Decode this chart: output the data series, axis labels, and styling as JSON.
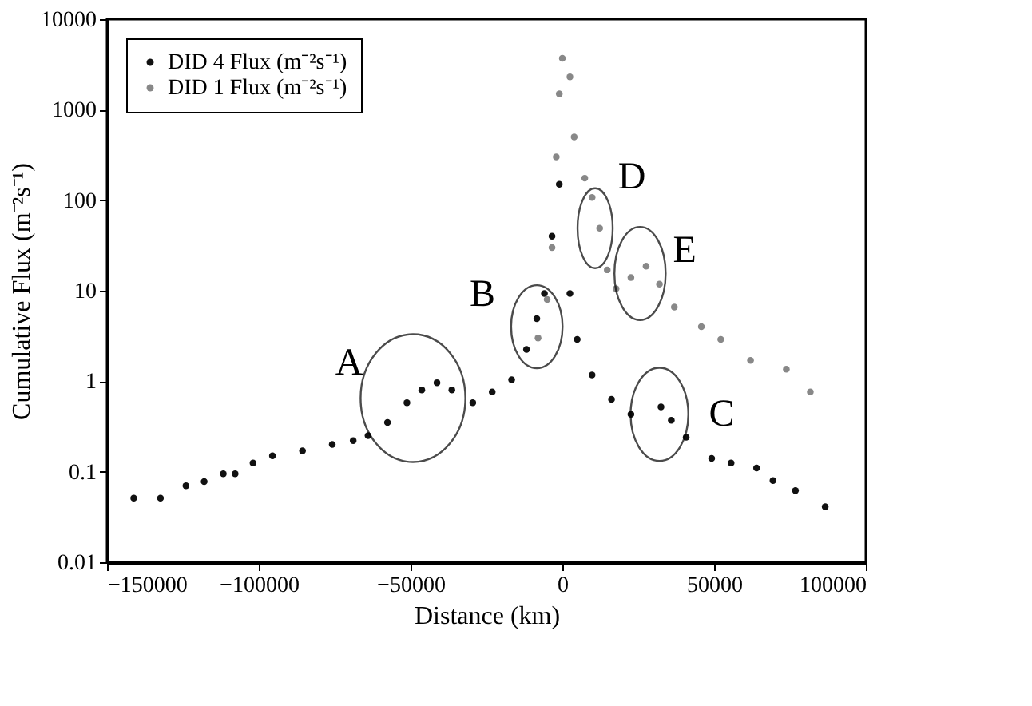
{
  "chart_data": {
    "type": "scatter",
    "xlabel": "Distance (km)",
    "ylabel": "Cumulative Flux (m⁻²s⁻¹)",
    "xlim": [
      -150000,
      100000
    ],
    "xticks": [
      -150000,
      -100000,
      -50000,
      0,
      50000,
      100000
    ],
    "ylim": [
      0.01,
      10000
    ],
    "yticks": [
      0.01,
      0.1,
      1,
      10,
      100,
      1000,
      10000
    ],
    "log": true,
    "grid": false,
    "legend": "top left",
    "marker": "circle",
    "series": [
      {
        "name": "DID 4 Flux (m⁻²s⁻¹)",
        "color": "#111111",
        "x": [
          -141200,
          -132400,
          -124000,
          -118000,
          -111700,
          -107800,
          -101900,
          -95500,
          -85600,
          -75800,
          -68900,
          -64000,
          -57600,
          -51200,
          -46300,
          -41300,
          -36400,
          -29500,
          -23100,
          -16700,
          -11800,
          -8400,
          -5900,
          -3400,
          -1000,
          2500,
          4900,
          9800,
          16200,
          22600,
          32500,
          35900,
          40800,
          49200,
          55600,
          64000,
          69400,
          76800,
          86600
        ],
        "values": [
          0.051,
          0.051,
          0.07,
          0.078,
          0.095,
          0.095,
          0.125,
          0.15,
          0.17,
          0.2,
          0.22,
          0.25,
          0.35,
          0.58,
          0.8,
          0.96,
          0.8,
          0.58,
          0.76,
          1.04,
          2.25,
          4.9,
          9.3,
          40,
          150,
          9.3,
          2.9,
          1.17,
          0.63,
          0.43,
          0.52,
          0.37,
          0.24,
          0.14,
          0.125,
          0.11,
          0.08,
          0.062,
          0.041
        ]
      },
      {
        "name": "DID 1 Flux (m⁻²s⁻¹)",
        "color": "#888888",
        "x": [
          -8000,
          -5000,
          -3400,
          -2000,
          -1000,
          0,
          2500,
          3900,
          7400,
          9800,
          12300,
          14800,
          17700,
          22600,
          27600,
          32000,
          36900,
          45800,
          52200,
          62000,
          73800,
          81700
        ],
        "values": [
          3,
          8,
          30,
          300,
          1500,
          3700,
          2300,
          500,
          175,
          107,
          49,
          17,
          10.5,
          14,
          18.7,
          11.8,
          6.6,
          4,
          2.9,
          1.7,
          1.36,
          0.76
        ]
      }
    ],
    "annotations": [
      {
        "text": "A",
        "x": -49200,
        "y": 0.65
      },
      {
        "text": "B",
        "x": -8400,
        "y": 4
      },
      {
        "text": "C",
        "x": 32000,
        "y": 0.43
      },
      {
        "text": "D",
        "x": 10800,
        "y": 49
      },
      {
        "text": "E",
        "x": 25600,
        "y": 15.5
      }
    ]
  }
}
